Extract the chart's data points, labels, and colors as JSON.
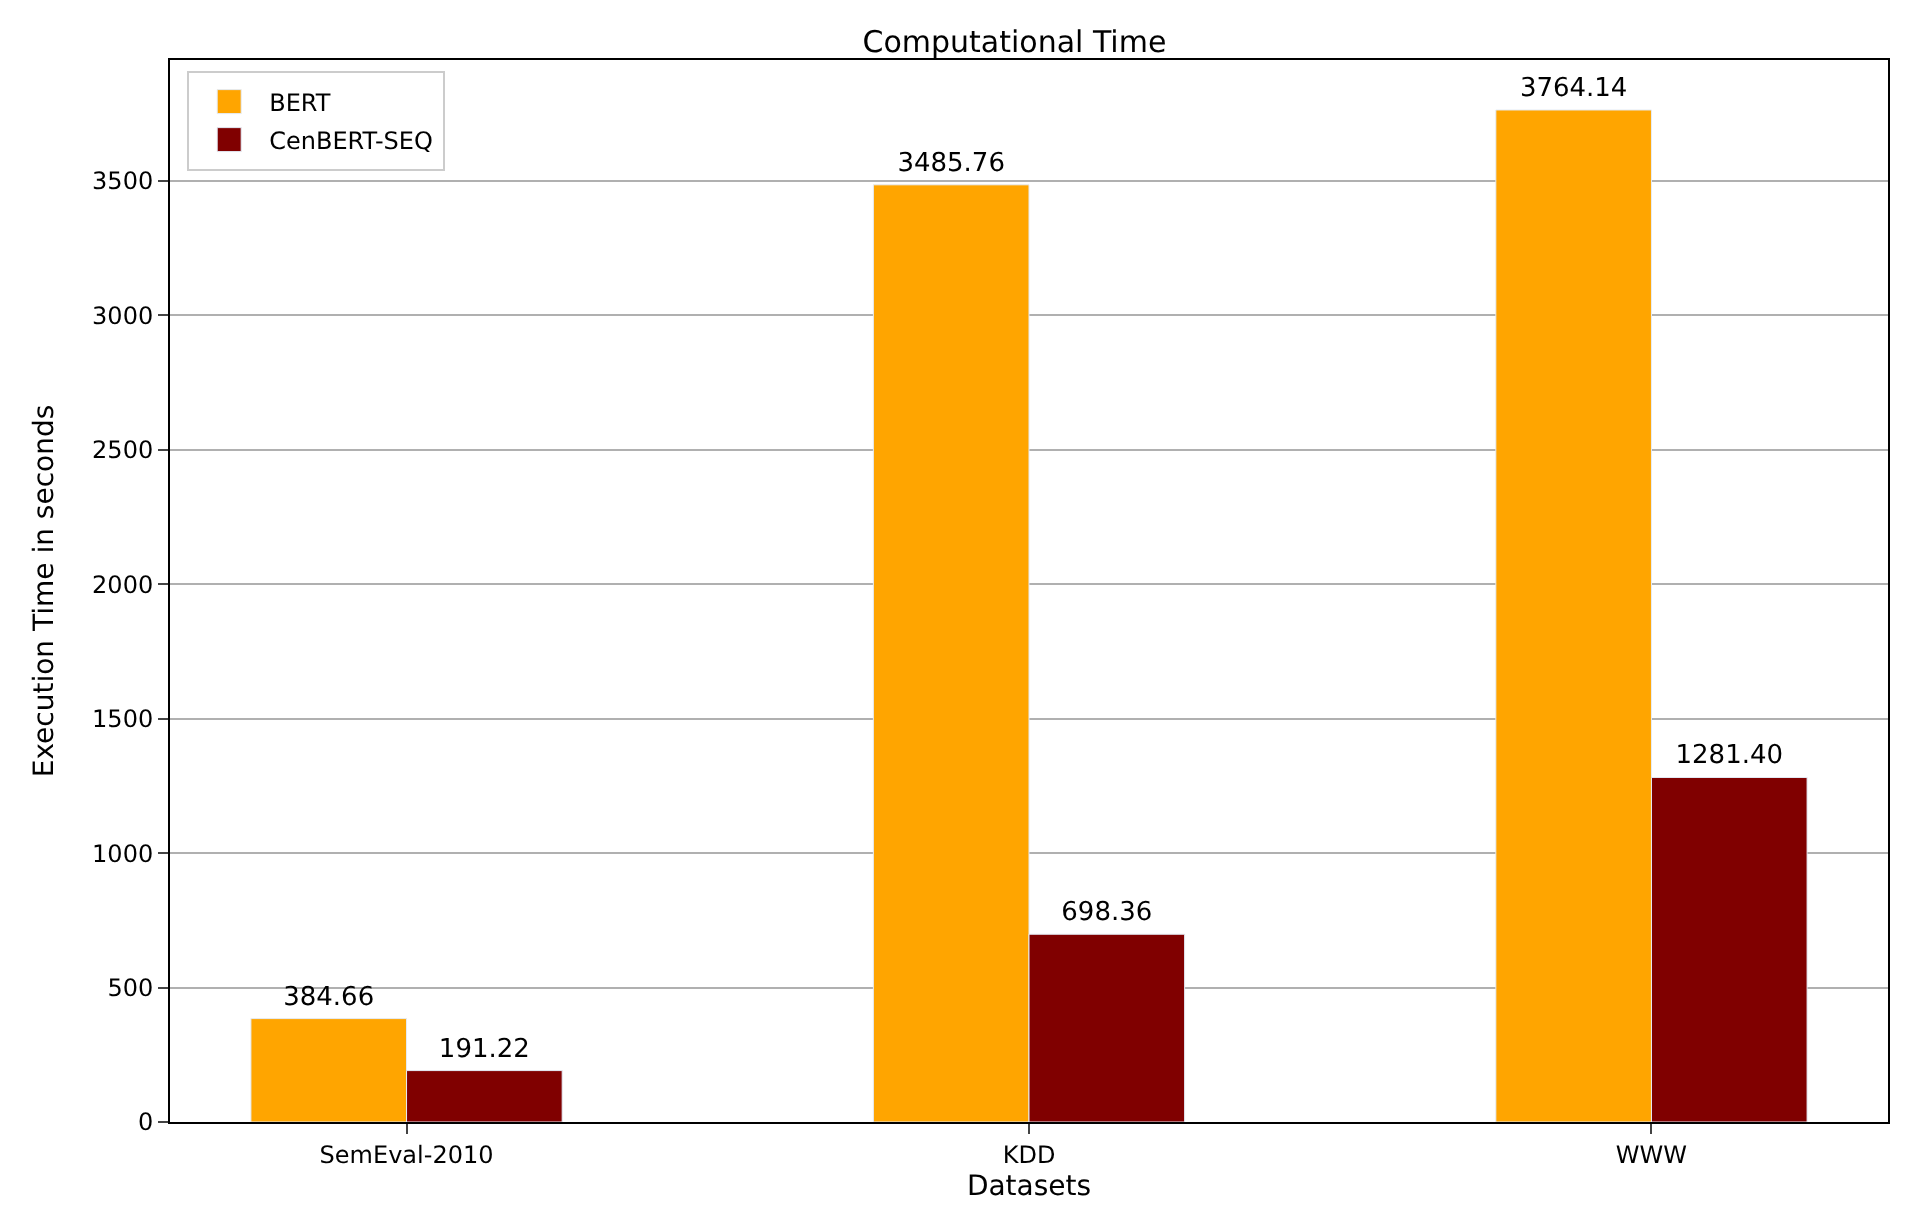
{
  "chart_data": {
    "type": "bar",
    "title": "Computational Time",
    "xlabel": "Datasets",
    "ylabel": "Execution Time in seconds",
    "categories": [
      "SemEval-2010",
      "KDD",
      "WWW"
    ],
    "series": [
      {
        "name": "BERT",
        "color": "#ffa500",
        "values": [
          384.66,
          3485.76,
          3764.14
        ],
        "value_labels": [
          "384.66",
          "3485.76",
          "3764.14"
        ]
      },
      {
        "name": "CenBERT-SEQ",
        "color": "#800000",
        "values": [
          191.22,
          698.36,
          1281.4
        ],
        "value_labels": [
          "191.22",
          "698.36",
          "1281.40"
        ]
      }
    ],
    "ylim": [
      0,
      3950
    ],
    "yticks": [
      0,
      500,
      1000,
      1500,
      2000,
      2500,
      3000,
      3500
    ],
    "grid": "y",
    "legend": "top left"
  }
}
